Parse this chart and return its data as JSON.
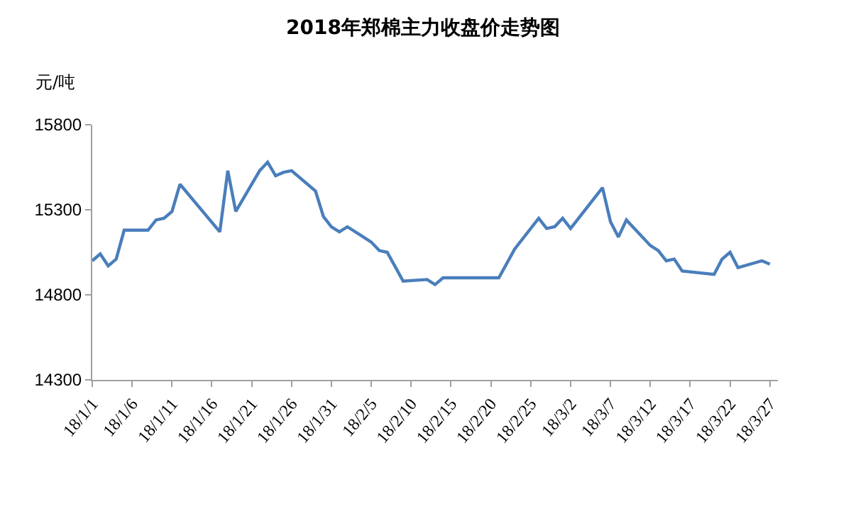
{
  "chart_data": {
    "type": "line",
    "title": "2018年郑棉主力收盘价走势图",
    "ylabel": "元/吨",
    "x": [
      "2018-01-01",
      "2018-01-02",
      "2018-01-03",
      "2018-01-04",
      "2018-01-05",
      "2018-01-08",
      "2018-01-09",
      "2018-01-10",
      "2018-01-11",
      "2018-01-12",
      "2018-01-17",
      "2018-01-18",
      "2018-01-19",
      "2018-01-22",
      "2018-01-23",
      "2018-01-24",
      "2018-01-25",
      "2018-01-26",
      "2018-01-29",
      "2018-01-30",
      "2018-01-31",
      "2018-02-01",
      "2018-02-02",
      "2018-02-05",
      "2018-02-06",
      "2018-02-07",
      "2018-02-09",
      "2018-02-12",
      "2018-02-13",
      "2018-02-14",
      "2018-02-21",
      "2018-02-23",
      "2018-02-26",
      "2018-02-27",
      "2018-02-28",
      "2018-03-01",
      "2018-03-02",
      "2018-03-06",
      "2018-03-07",
      "2018-03-08",
      "2018-03-09",
      "2018-03-12",
      "2018-03-13",
      "2018-03-14",
      "2018-03-15",
      "2018-03-16",
      "2018-03-20",
      "2018-03-21",
      "2018-03-22",
      "2018-03-23",
      "2018-03-26",
      "2018-03-27"
    ],
    "series": [
      {
        "color": "#4a7ebb",
        "values": [
          15000,
          15040,
          14970,
          15010,
          15180,
          15180,
          15240,
          15250,
          15290,
          15450,
          15170,
          15530,
          15290,
          15530,
          15580,
          15500,
          15520,
          15530,
          15410,
          15260,
          15200,
          15170,
          15200,
          15110,
          15060,
          15050,
          14880,
          14890,
          14860,
          14900,
          14900,
          15070,
          15250,
          15190,
          15200,
          15250,
          15190,
          15430,
          15230,
          15140,
          15240,
          15090,
          15060,
          15000,
          15010,
          14940,
          14920,
          15010,
          15050,
          14960,
          15000,
          14980
        ]
      }
    ],
    "xlim": [
      "2018-01-01",
      "2018-03-28"
    ],
    "xticks": [
      {
        "value": "2018-01-01",
        "label": "18/1/1"
      },
      {
        "value": "2018-01-06",
        "label": "18/1/6"
      },
      {
        "value": "2018-01-11",
        "label": "18/1/11"
      },
      {
        "value": "2018-01-16",
        "label": "18/1/16"
      },
      {
        "value": "2018-01-21",
        "label": "18/1/21"
      },
      {
        "value": "2018-01-26",
        "label": "18/1/26"
      },
      {
        "value": "2018-01-31",
        "label": "18/1/31"
      },
      {
        "value": "2018-02-05",
        "label": "18/2/5"
      },
      {
        "value": "2018-02-10",
        "label": "18/2/10"
      },
      {
        "value": "2018-02-15",
        "label": "18/2/15"
      },
      {
        "value": "2018-02-20",
        "label": "18/2/20"
      },
      {
        "value": "2018-02-25",
        "label": "18/2/25"
      },
      {
        "value": "2018-03-02",
        "label": "18/3/2"
      },
      {
        "value": "2018-03-07",
        "label": "18/3/7"
      },
      {
        "value": "2018-03-12",
        "label": "18/3/12"
      },
      {
        "value": "2018-03-17",
        "label": "18/3/17"
      },
      {
        "value": "2018-03-22",
        "label": "18/3/22"
      },
      {
        "value": "2018-03-27",
        "label": "18/3/27"
      }
    ],
    "ylim": [
      14300,
      15800
    ],
    "yticks": [
      14300,
      14800,
      15300,
      15800
    ],
    "marker": "none",
    "line_style": "solid"
  }
}
